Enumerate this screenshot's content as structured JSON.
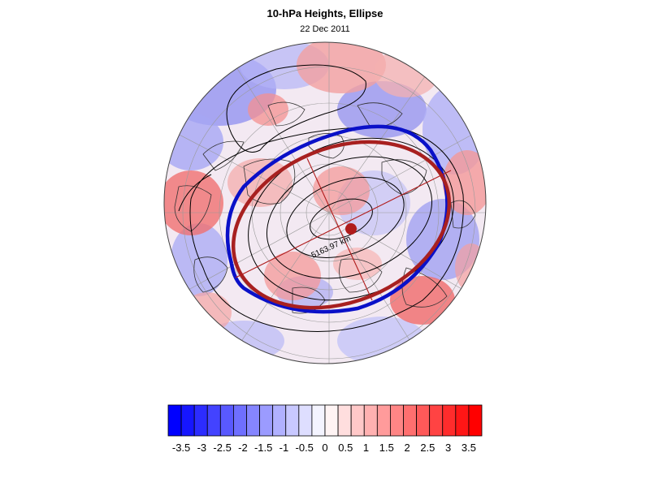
{
  "header": {
    "title": "10-hPa Heights, Ellipse",
    "subtitle": "22 Dec 2011"
  },
  "map": {
    "projection": "polar stereographic (north)",
    "distance_label": "5163.97 km",
    "ellipse_colors": {
      "observed": "#0a10c8",
      "fitted": "#a82020"
    },
    "center_marker_color": "#b01c1c"
  },
  "colorbar": {
    "min_color": "#0000ff",
    "mid_color": "#ffffff",
    "max_color": "#ff0000",
    "levels": 24,
    "tick_labels": [
      "-3.5",
      "-3",
      "-2.5",
      "-2",
      "-1.5",
      "-1",
      "-0.5",
      "0",
      "0.5",
      "1",
      "1.5",
      "2",
      "2.5",
      "3",
      "3.5"
    ]
  }
}
